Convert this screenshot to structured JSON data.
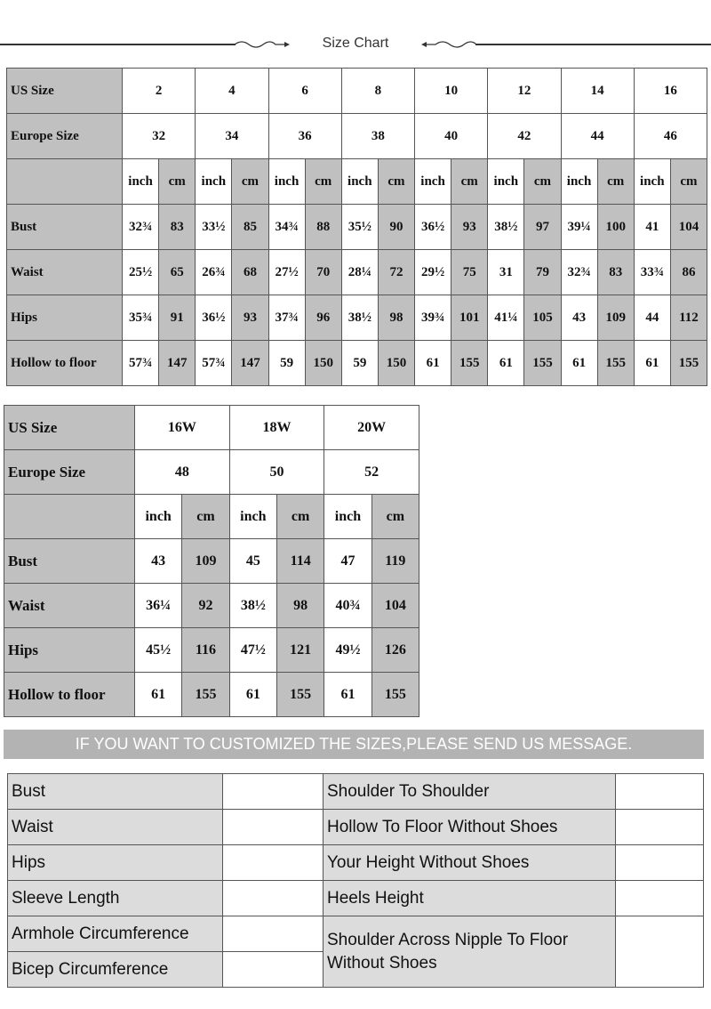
{
  "title": "Size Chart",
  "table1": {
    "us_label": "US Size",
    "eu_label": "Europe Size",
    "inch": "inch",
    "cm": "cm",
    "us": [
      "2",
      "4",
      "6",
      "8",
      "10",
      "12",
      "14",
      "16"
    ],
    "eu": [
      "32",
      "34",
      "36",
      "38",
      "40",
      "42",
      "44",
      "46"
    ],
    "rows": [
      {
        "label": "Bust",
        "values": [
          "32¾",
          "83",
          "33½",
          "85",
          "34¾",
          "88",
          "35½",
          "90",
          "36½",
          "93",
          "38½",
          "97",
          "39¼",
          "100",
          "41",
          "104"
        ]
      },
      {
        "label": "Waist",
        "values": [
          "25½",
          "65",
          "26¾",
          "68",
          "27½",
          "70",
          "28¼",
          "72",
          "29½",
          "75",
          "31",
          "79",
          "32¾",
          "83",
          "33¾",
          "86"
        ]
      },
      {
        "label": "Hips",
        "values": [
          "35¾",
          "91",
          "36½",
          "93",
          "37¾",
          "96",
          "38½",
          "98",
          "39¾",
          "101",
          "41¼",
          "105",
          "43",
          "109",
          "44",
          "112"
        ]
      },
      {
        "label": "Hollow to floor",
        "values": [
          "57¾",
          "147",
          "57¾",
          "147",
          "59",
          "150",
          "59",
          "150",
          "61",
          "155",
          "61",
          "155",
          "61",
          "155",
          "61",
          "155"
        ]
      }
    ]
  },
  "table2": {
    "us_label": "US Size",
    "eu_label": "Europe Size",
    "inch": "inch",
    "cm": "cm",
    "us": [
      "16W",
      "18W",
      "20W"
    ],
    "eu": [
      "48",
      "50",
      "52"
    ],
    "rows": [
      {
        "label": "Bust",
        "values": [
          "43",
          "109",
          "45",
          "114",
          "47",
          "119"
        ]
      },
      {
        "label": "Waist",
        "values": [
          "36¼",
          "92",
          "38½",
          "98",
          "40¾",
          "104"
        ]
      },
      {
        "label": "Hips",
        "values": [
          "45½",
          "116",
          "47½",
          "121",
          "49½",
          "126"
        ]
      },
      {
        "label": "Hollow to floor",
        "values": [
          "61",
          "155",
          "61",
          "155",
          "61",
          "155"
        ]
      }
    ]
  },
  "banner": "IF YOU WANT TO CUSTOMIZED THE SIZES,PLEASE SEND US MESSAGE.",
  "custom": {
    "left": [
      "Bust",
      "Waist",
      "Hips",
      "Sleeve Length",
      "Armhole Circumference",
      "Bicep Circumference"
    ],
    "right": [
      "Shoulder To Shoulder",
      "Hollow To Floor Without Shoes",
      "Your Height Without Shoes",
      "Heels Height",
      "Shoulder Across Nipple To Floor Without Shoes"
    ]
  }
}
